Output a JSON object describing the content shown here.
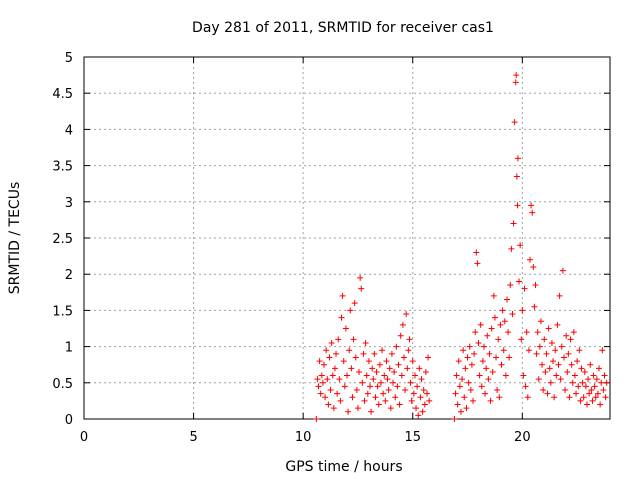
{
  "chart_data": {
    "type": "scatter",
    "title": "Day 281 of 2011, SRMTID for receiver cas1",
    "xlabel": "GPS time / hours",
    "ylabel": "SRMTID / TECUs",
    "xlim": [
      0,
      24
    ],
    "ylim": [
      0,
      5
    ],
    "xticks": [
      "0",
      "5",
      "10",
      "15",
      "20"
    ],
    "yticks": [
      "0",
      "0.5",
      "1",
      "1.5",
      "2",
      "2.5",
      "3",
      "3.5",
      "4",
      "4.5",
      "5"
    ],
    "grid": true,
    "marker": "+",
    "color": "#ff0000",
    "series": [
      {
        "points": [
          [
            10.6,
            0.0
          ],
          [
            10.65,
            0.55
          ],
          [
            10.7,
            0.45
          ],
          [
            10.75,
            0.8
          ],
          [
            10.8,
            0.35
          ],
          [
            10.85,
            0.6
          ],
          [
            10.9,
            0.5
          ],
          [
            10.95,
            0.75
          ],
          [
            11.0,
            0.3
          ],
          [
            11.05,
            0.95
          ],
          [
            11.1,
            0.55
          ],
          [
            11.15,
            0.2
          ],
          [
            11.2,
            0.85
          ],
          [
            11.25,
            0.4
          ],
          [
            11.3,
            1.05
          ],
          [
            11.35,
            0.6
          ],
          [
            11.4,
            0.15
          ],
          [
            11.45,
            0.7
          ],
          [
            11.5,
            0.9
          ],
          [
            11.55,
            0.35
          ],
          [
            11.6,
            1.1
          ],
          [
            11.65,
            0.55
          ],
          [
            11.7,
            0.25
          ],
          [
            11.75,
            1.4
          ],
          [
            11.8,
            1.7
          ],
          [
            11.85,
            0.8
          ],
          [
            11.9,
            0.45
          ],
          [
            11.95,
            1.25
          ],
          [
            12.0,
            0.6
          ],
          [
            12.05,
            0.1
          ],
          [
            12.1,
            0.95
          ],
          [
            12.15,
            1.5
          ],
          [
            12.2,
            0.7
          ],
          [
            12.25,
            0.3
          ],
          [
            12.3,
            1.1
          ],
          [
            12.35,
            1.6
          ],
          [
            12.4,
            0.85
          ],
          [
            12.45,
            0.4
          ],
          [
            12.5,
            0.15
          ],
          [
            12.55,
            0.65
          ],
          [
            12.6,
            1.95
          ],
          [
            12.65,
            1.8
          ],
          [
            12.7,
            0.5
          ],
          [
            12.75,
            0.9
          ],
          [
            12.8,
            0.25
          ],
          [
            12.85,
            1.05
          ],
          [
            12.9,
            0.6
          ],
          [
            12.95,
            0.35
          ],
          [
            13.0,
            0.8
          ],
          [
            13.05,
            0.45
          ],
          [
            13.1,
            0.1
          ],
          [
            13.15,
            0.7
          ],
          [
            13.2,
            0.55
          ],
          [
            13.25,
            0.9
          ],
          [
            13.3,
            0.3
          ],
          [
            13.35,
            0.65
          ],
          [
            13.4,
            0.45
          ],
          [
            13.45,
            0.2
          ],
          [
            13.5,
            0.75
          ],
          [
            13.55,
            0.5
          ],
          [
            13.6,
            0.95
          ],
          [
            13.65,
            0.35
          ],
          [
            13.7,
            0.6
          ],
          [
            13.75,
            0.25
          ],
          [
            13.8,
            0.8
          ],
          [
            13.85,
            0.55
          ],
          [
            13.9,
            0.4
          ],
          [
            13.95,
            0.7
          ],
          [
            14.0,
            0.15
          ],
          [
            14.05,
            0.9
          ],
          [
            14.1,
            0.5
          ],
          [
            14.15,
            0.65
          ],
          [
            14.2,
            0.3
          ],
          [
            14.25,
            1.0
          ],
          [
            14.3,
            0.45
          ],
          [
            14.35,
            0.75
          ],
          [
            14.4,
            0.2
          ],
          [
            14.45,
            1.15
          ],
          [
            14.5,
            0.6
          ],
          [
            14.55,
            1.3
          ],
          [
            14.6,
            0.85
          ],
          [
            14.65,
            0.4
          ],
          [
            14.7,
            1.45
          ],
          [
            14.75,
            0.7
          ],
          [
            14.8,
            0.95
          ],
          [
            14.85,
            1.1
          ],
          [
            14.9,
            0.5
          ],
          [
            14.95,
            0.25
          ],
          [
            15.0,
            0.8
          ],
          [
            15.05,
            0.35
          ],
          [
            15.1,
            0.6
          ],
          [
            15.15,
            0.15
          ],
          [
            15.2,
            0.45
          ],
          [
            15.25,
            0.05
          ],
          [
            15.3,
            0.7
          ],
          [
            15.35,
            0.3
          ],
          [
            15.4,
            0.55
          ],
          [
            15.45,
            0.1
          ],
          [
            15.5,
            0.4
          ],
          [
            15.55,
            0.2
          ],
          [
            15.6,
            0.65
          ],
          [
            15.65,
            0.35
          ],
          [
            15.7,
            0.85
          ],
          [
            15.75,
            0.25
          ],
          [
            16.9,
            0.0
          ],
          [
            16.95,
            0.35
          ],
          [
            17.0,
            0.6
          ],
          [
            17.05,
            0.2
          ],
          [
            17.1,
            0.8
          ],
          [
            17.15,
            0.45
          ],
          [
            17.2,
            0.1
          ],
          [
            17.25,
            0.55
          ],
          [
            17.3,
            0.95
          ],
          [
            17.35,
            0.3
          ],
          [
            17.4,
            0.7
          ],
          [
            17.45,
            0.15
          ],
          [
            17.5,
            0.85
          ],
          [
            17.55,
            0.5
          ],
          [
            17.6,
            1.0
          ],
          [
            17.65,
            0.4
          ],
          [
            17.7,
            0.75
          ],
          [
            17.75,
            0.25
          ],
          [
            17.8,
            0.9
          ],
          [
            17.85,
            1.2
          ],
          [
            17.9,
            2.3
          ],
          [
            17.95,
            2.15
          ],
          [
            18.0,
            1.05
          ],
          [
            18.05,
            0.6
          ],
          [
            18.1,
            1.3
          ],
          [
            18.15,
            0.45
          ],
          [
            18.2,
            0.8
          ],
          [
            18.25,
            1.0
          ],
          [
            18.3,
            0.35
          ],
          [
            18.35,
            0.7
          ],
          [
            18.4,
            1.15
          ],
          [
            18.45,
            0.55
          ],
          [
            18.5,
            0.9
          ],
          [
            18.55,
            0.25
          ],
          [
            18.6,
            1.25
          ],
          [
            18.65,
            0.65
          ],
          [
            18.7,
            1.7
          ],
          [
            18.75,
            1.4
          ],
          [
            18.8,
            0.85
          ],
          [
            18.85,
            0.4
          ],
          [
            18.9,
            1.1
          ],
          [
            18.95,
            0.3
          ],
          [
            19.0,
            1.3
          ],
          [
            19.05,
            0.75
          ],
          [
            19.1,
            1.5
          ],
          [
            19.15,
            0.95
          ],
          [
            19.2,
            1.35
          ],
          [
            19.25,
            0.6
          ],
          [
            19.3,
            1.65
          ],
          [
            19.35,
            1.2
          ],
          [
            19.4,
            0.85
          ],
          [
            19.45,
            1.85
          ],
          [
            19.5,
            2.35
          ],
          [
            19.55,
            1.45
          ],
          [
            19.6,
            2.7
          ],
          [
            19.65,
            4.1
          ],
          [
            19.7,
            4.65
          ],
          [
            19.72,
            4.75
          ],
          [
            19.75,
            3.35
          ],
          [
            19.78,
            2.95
          ],
          [
            19.8,
            3.6
          ],
          [
            19.85,
            1.9
          ],
          [
            19.9,
            2.4
          ],
          [
            19.95,
            1.1
          ],
          [
            20.0,
            1.5
          ],
          [
            20.05,
            0.6
          ],
          [
            20.1,
            1.8
          ],
          [
            20.15,
            0.45
          ],
          [
            20.2,
            1.2
          ],
          [
            20.25,
            0.3
          ],
          [
            20.3,
            0.95
          ],
          [
            20.35,
            2.2
          ],
          [
            20.4,
            2.95
          ],
          [
            20.45,
            2.85
          ],
          [
            20.5,
            2.1
          ],
          [
            20.55,
            1.55
          ],
          [
            20.6,
            1.85
          ],
          [
            20.65,
            0.9
          ],
          [
            20.7,
            1.2
          ],
          [
            20.75,
            0.55
          ],
          [
            20.8,
            1.0
          ],
          [
            20.85,
            1.35
          ],
          [
            20.9,
            0.75
          ],
          [
            20.95,
            0.4
          ],
          [
            21.0,
            1.1
          ],
          [
            21.05,
            0.65
          ],
          [
            21.1,
            0.9
          ],
          [
            21.15,
            0.35
          ],
          [
            21.2,
            1.25
          ],
          [
            21.25,
            0.7
          ],
          [
            21.3,
            0.5
          ],
          [
            21.35,
            1.05
          ],
          [
            21.4,
            0.8
          ],
          [
            21.45,
            0.3
          ],
          [
            21.5,
            0.95
          ],
          [
            21.55,
            0.6
          ],
          [
            21.6,
            1.3
          ],
          [
            21.65,
            0.75
          ],
          [
            21.7,
            1.7
          ],
          [
            21.75,
            0.55
          ],
          [
            21.8,
            1.0
          ],
          [
            21.85,
            2.05
          ],
          [
            21.9,
            0.85
          ],
          [
            21.95,
            0.4
          ],
          [
            22.0,
            1.15
          ],
          [
            22.05,
            0.65
          ],
          [
            22.1,
            0.9
          ],
          [
            22.15,
            0.3
          ],
          [
            22.2,
            1.1
          ],
          [
            22.25,
            0.75
          ],
          [
            22.3,
            0.5
          ],
          [
            22.35,
            1.2
          ],
          [
            22.4,
            0.6
          ],
          [
            22.45,
            0.35
          ],
          [
            22.5,
            0.8
          ],
          [
            22.55,
            0.45
          ],
          [
            22.6,
            0.95
          ],
          [
            22.65,
            0.25
          ],
          [
            22.7,
            0.7
          ],
          [
            22.75,
            0.5
          ],
          [
            22.8,
            0.3
          ],
          [
            22.85,
            0.65
          ],
          [
            22.9,
            0.45
          ],
          [
            22.95,
            0.2
          ],
          [
            23.0,
            0.55
          ],
          [
            23.05,
            0.35
          ],
          [
            23.1,
            0.75
          ],
          [
            23.15,
            0.4
          ],
          [
            23.2,
            0.25
          ],
          [
            23.25,
            0.6
          ],
          [
            23.3,
            0.45
          ],
          [
            23.35,
            0.3
          ],
          [
            23.4,
            0.55
          ],
          [
            23.45,
            0.35
          ],
          [
            23.5,
            0.7
          ],
          [
            23.55,
            0.2
          ],
          [
            23.6,
            0.5
          ],
          [
            23.65,
            0.95
          ],
          [
            23.7,
            0.4
          ],
          [
            23.75,
            0.6
          ],
          [
            23.8,
            0.3
          ],
          [
            23.85,
            0.5
          ]
        ]
      }
    ]
  }
}
